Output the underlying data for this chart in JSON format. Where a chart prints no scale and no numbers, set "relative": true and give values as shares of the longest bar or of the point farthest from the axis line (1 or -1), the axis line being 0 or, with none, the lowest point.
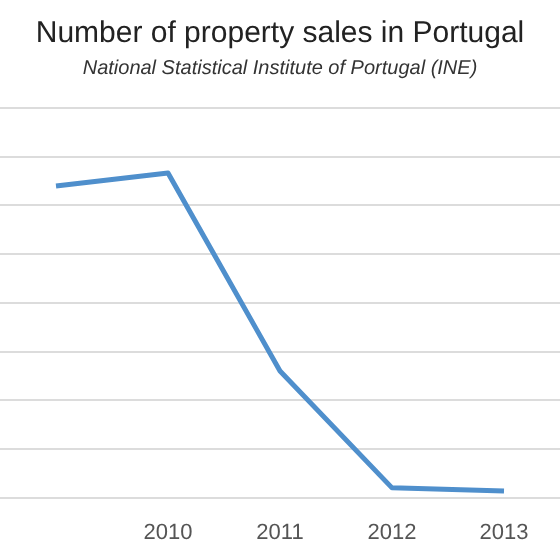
{
  "chart_data": {
    "type": "line",
    "title": "Number of property sales in Portugal",
    "subtitle": "National Statistical Institute of Portugal (INE)",
    "categories": [
      null,
      "2010",
      "2011",
      "2012",
      "2013"
    ],
    "series": [
      {
        "color": "#4f8fcc",
        "values": [
          0.96,
          1,
          0.39,
          0.03,
          0.02
        ]
      }
    ],
    "relative": true,
    "grid": "y",
    "legend": false,
    "marker": "none",
    "line_style": "solid"
  }
}
